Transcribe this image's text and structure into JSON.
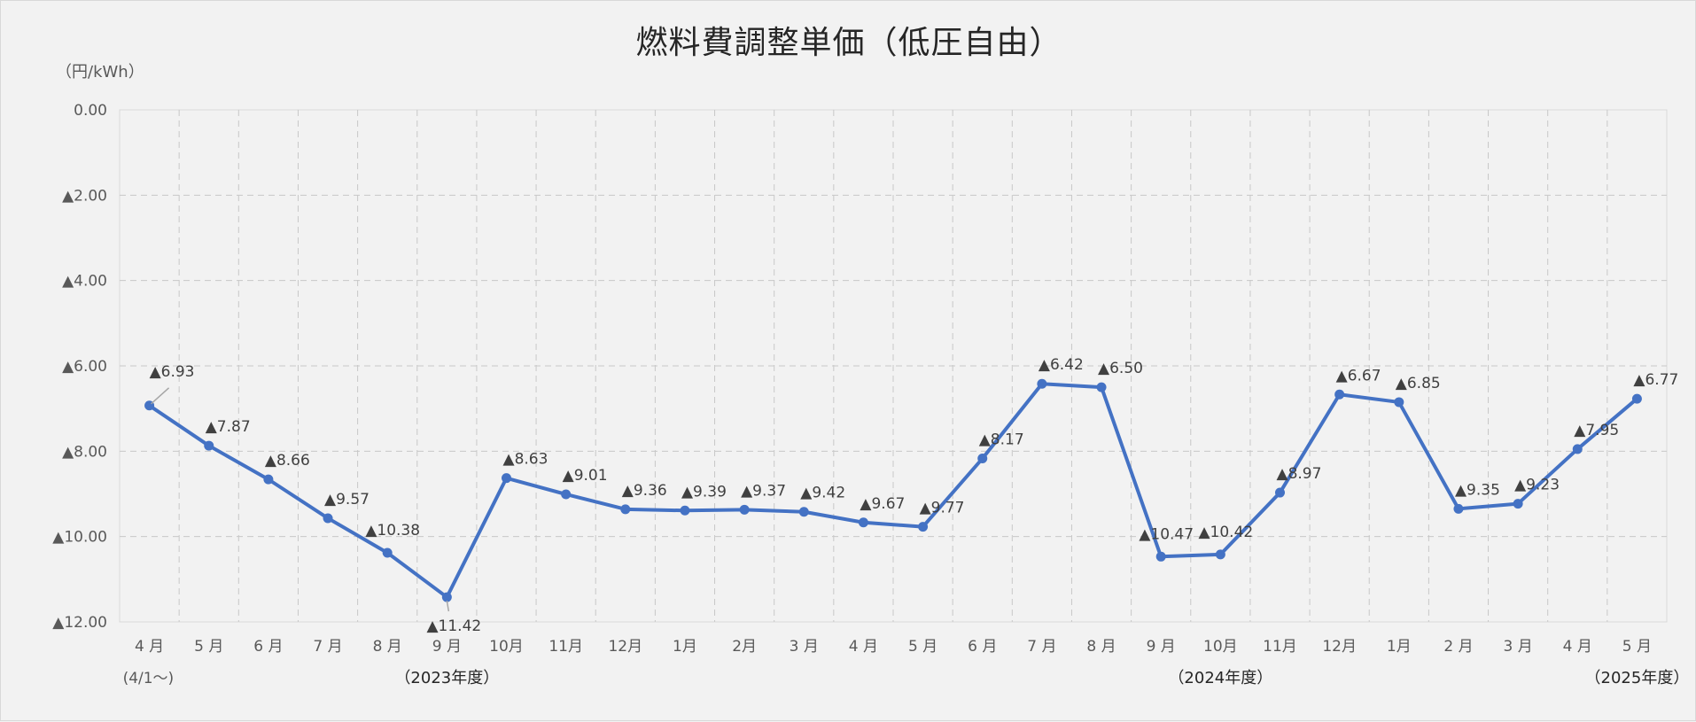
{
  "chart_data": {
    "type": "line",
    "title": "燃料費調整単価（低圧自由）",
    "unit_label": "（円/kWh）",
    "xlabel": "",
    "ylabel": "",
    "ylim": [
      0,
      12
    ],
    "y_reversed": true,
    "y_ticks": [
      {
        "value": 0,
        "label": "0.00"
      },
      {
        "value": 2,
        "label": "▲2.00"
      },
      {
        "value": 4,
        "label": "▲4.00"
      },
      {
        "value": 6,
        "label": "▲6.00"
      },
      {
        "value": 8,
        "label": "▲8.00"
      },
      {
        "value": 10,
        "label": "▲10.00"
      },
      {
        "value": 12,
        "label": "▲12.00"
      }
    ],
    "grid": true,
    "categories": [
      "4 月",
      "5 月",
      "6 月",
      "7 月",
      "8 月",
      "9 月",
      "10月",
      "11月",
      "12月",
      "1月",
      "2月",
      "3 月",
      "4 月",
      "5 月",
      "6 月",
      "7 月",
      "8 月",
      "9 月",
      "10月",
      "11月",
      "12月",
      "1月",
      "2 月",
      "3 月",
      "4 月",
      "5 月"
    ],
    "category_sublabels": [
      {
        "index": 0,
        "text": "(4/1～)"
      },
      {
        "index": 5,
        "text": "（2023年度）"
      },
      {
        "index": 18,
        "text": "（2024年度）"
      },
      {
        "index": 25,
        "text": "（2025年度）"
      }
    ],
    "series": [
      {
        "color": "#4472c4",
        "values": [
          6.93,
          7.87,
          8.66,
          9.57,
          10.38,
          11.42,
          8.63,
          9.01,
          9.36,
          9.39,
          9.37,
          9.42,
          9.67,
          9.77,
          8.17,
          6.42,
          6.5,
          10.47,
          10.42,
          8.97,
          6.67,
          6.85,
          9.35,
          9.23,
          7.95,
          6.77
        ],
        "labels": [
          "▲6.93",
          "▲7.87",
          "▲8.66",
          "▲9.57",
          "▲10.38",
          "▲11.42",
          "▲8.63",
          "▲9.01",
          "▲9.36",
          "▲9.39",
          "▲9.37",
          "▲9.42",
          "▲9.67",
          "▲9.77",
          "▲8.17",
          "▲6.42",
          "▲6.50",
          "▲10.47",
          "▲10.42",
          "▲8.97",
          "▲6.67",
          "▲6.85",
          "▲9.35",
          "▲9.23",
          "▲7.95",
          "▲6.77"
        ]
      }
    ]
  }
}
